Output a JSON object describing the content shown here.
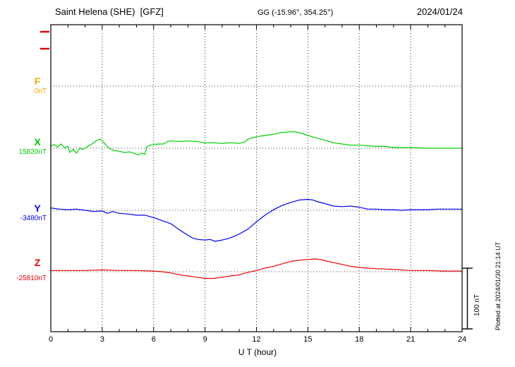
{
  "header": {
    "station": "Saint Helena (SHE)  [GFZ]",
    "gg": "GG (-15.96°, 354.25°)",
    "date": "2024/01/24"
  },
  "axis": {
    "x_label": "U T (hour)",
    "x_ticks": [
      0,
      3,
      6,
      9,
      12,
      15,
      18,
      21,
      24
    ]
  },
  "scale_bar": {
    "label": "100 nT",
    "nT": 100
  },
  "plotted_at": "Plotted at 2024/01/30 21:14 UT",
  "colors": {
    "frame": "#000000",
    "grid": "#000000",
    "axis_marks": "#dd0000"
  },
  "chart_data": {
    "type": "line",
    "title": "Saint Helena (SHE) [GFZ] magnetogram 2024/01/24",
    "xlabel": "U T (hour)",
    "x_range": [
      0,
      24
    ],
    "scale_bar_nT": 100,
    "offset_note": "points are [hour_UT, nT offset relative to the series base_value dotted baseline]",
    "series": [
      {
        "name": "F",
        "base_label": "0nT",
        "base_value": 0,
        "color": "#FFA500",
        "points": []
      },
      {
        "name": "X",
        "base_label": "15820nT",
        "base_value": 15820,
        "color": "#00cc00",
        "points": [
          [
            0,
            4
          ],
          [
            0.2,
            6
          ],
          [
            0.4,
            2
          ],
          [
            0.6,
            7
          ],
          [
            0.8,
            1
          ],
          [
            1.0,
            3
          ],
          [
            1.1,
            -7
          ],
          [
            1.3,
            -2
          ],
          [
            1.5,
            -8
          ],
          [
            1.7,
            0
          ],
          [
            1.9,
            -2
          ],
          [
            2.1,
            2
          ],
          [
            2.4,
            7
          ],
          [
            2.7,
            13
          ],
          [
            2.9,
            15
          ],
          [
            3.1,
            9
          ],
          [
            3.4,
            0
          ],
          [
            3.7,
            -4
          ],
          [
            4.0,
            -5
          ],
          [
            4.3,
            -7
          ],
          [
            4.6,
            -6
          ],
          [
            4.9,
            -9
          ],
          [
            5.1,
            -11
          ],
          [
            5.3,
            -8
          ],
          [
            5.5,
            -10
          ],
          [
            5.6,
            2
          ],
          [
            5.8,
            5
          ],
          [
            6.0,
            6
          ],
          [
            6.3,
            7
          ],
          [
            6.6,
            7
          ],
          [
            6.8,
            11
          ],
          [
            7.0,
            12
          ],
          [
            7.5,
            11
          ],
          [
            8.0,
            12
          ],
          [
            8.5,
            11
          ],
          [
            9.0,
            9
          ],
          [
            9.5,
            9
          ],
          [
            10.0,
            8
          ],
          [
            10.5,
            9
          ],
          [
            11.0,
            8
          ],
          [
            11.3,
            10
          ],
          [
            11.5,
            15
          ],
          [
            12.0,
            19
          ],
          [
            12.5,
            21
          ],
          [
            13.0,
            23
          ],
          [
            13.5,
            26
          ],
          [
            14.0,
            27
          ],
          [
            14.3,
            27
          ],
          [
            14.6,
            25
          ],
          [
            15.0,
            21
          ],
          [
            15.5,
            17
          ],
          [
            16.0,
            13
          ],
          [
            16.5,
            9
          ],
          [
            17.0,
            7
          ],
          [
            17.5,
            5
          ],
          [
            18.0,
            5
          ],
          [
            18.5,
            4
          ],
          [
            19.0,
            3
          ],
          [
            19.5,
            3
          ],
          [
            20.0,
            1
          ],
          [
            20.5,
            1
          ],
          [
            21.0,
            1
          ],
          [
            22.0,
            0
          ],
          [
            23.0,
            0
          ],
          [
            24.0,
            0
          ]
        ]
      },
      {
        "name": "Y",
        "base_label": "-3480nT",
        "base_value": -3480,
        "color": "#0000ee",
        "points": [
          [
            0,
            4
          ],
          [
            0.5,
            2
          ],
          [
            1.0,
            1
          ],
          [
            1.5,
            2
          ],
          [
            2.0,
            0
          ],
          [
            2.5,
            -2
          ],
          [
            3.0,
            -1
          ],
          [
            3.3,
            -5
          ],
          [
            3.6,
            -2
          ],
          [
            4.0,
            -5
          ],
          [
            4.5,
            -6
          ],
          [
            5.0,
            -8
          ],
          [
            5.5,
            -8
          ],
          [
            6.0,
            -12
          ],
          [
            6.5,
            -17
          ],
          [
            7.0,
            -22
          ],
          [
            7.5,
            -32
          ],
          [
            8.0,
            -41
          ],
          [
            8.3,
            -46
          ],
          [
            8.6,
            -48
          ],
          [
            9.0,
            -49
          ],
          [
            9.3,
            -48
          ],
          [
            9.6,
            -51
          ],
          [
            10.0,
            -49
          ],
          [
            10.3,
            -47
          ],
          [
            10.6,
            -44
          ],
          [
            11.0,
            -39
          ],
          [
            11.5,
            -31
          ],
          [
            12.0,
            -19
          ],
          [
            12.5,
            -8
          ],
          [
            13.0,
            1
          ],
          [
            13.5,
            8
          ],
          [
            14.0,
            13
          ],
          [
            14.5,
            17
          ],
          [
            15.0,
            18
          ],
          [
            15.3,
            17
          ],
          [
            15.6,
            14
          ],
          [
            16.0,
            11
          ],
          [
            16.5,
            7
          ],
          [
            17.0,
            6
          ],
          [
            17.5,
            7
          ],
          [
            18.0,
            5
          ],
          [
            18.5,
            2
          ],
          [
            19.0,
            2
          ],
          [
            19.5,
            1
          ],
          [
            20.0,
            1
          ],
          [
            20.5,
            0
          ],
          [
            21.0,
            1
          ],
          [
            21.5,
            1
          ],
          [
            22.0,
            1
          ],
          [
            22.5,
            2
          ],
          [
            23.0,
            2
          ],
          [
            23.5,
            2
          ],
          [
            24.0,
            2
          ]
        ]
      },
      {
        "name": "Z",
        "base_label": "-25810nT",
        "base_value": -25810,
        "color": "#ee0000",
        "points": [
          [
            0,
            2
          ],
          [
            1,
            2
          ],
          [
            2,
            2
          ],
          [
            3,
            3
          ],
          [
            4,
            2
          ],
          [
            5,
            2
          ],
          [
            6,
            1
          ],
          [
            6.5,
            0
          ],
          [
            7,
            -2
          ],
          [
            7.5,
            -5
          ],
          [
            8,
            -7
          ],
          [
            8.5,
            -9
          ],
          [
            9,
            -11
          ],
          [
            9.5,
            -11
          ],
          [
            10,
            -9
          ],
          [
            10.5,
            -7
          ],
          [
            11,
            -5
          ],
          [
            11.5,
            -1
          ],
          [
            12,
            2
          ],
          [
            12.5,
            6
          ],
          [
            13,
            9
          ],
          [
            13.5,
            13
          ],
          [
            14,
            17
          ],
          [
            14.5,
            19
          ],
          [
            15,
            20
          ],
          [
            15.4,
            21
          ],
          [
            15.8,
            20
          ],
          [
            16,
            18
          ],
          [
            16.5,
            15
          ],
          [
            17,
            12
          ],
          [
            17.5,
            9
          ],
          [
            18,
            7
          ],
          [
            19,
            5
          ],
          [
            20,
            4
          ],
          [
            21,
            2
          ],
          [
            22,
            2
          ],
          [
            23,
            1
          ],
          [
            24,
            1
          ]
        ]
      }
    ]
  }
}
